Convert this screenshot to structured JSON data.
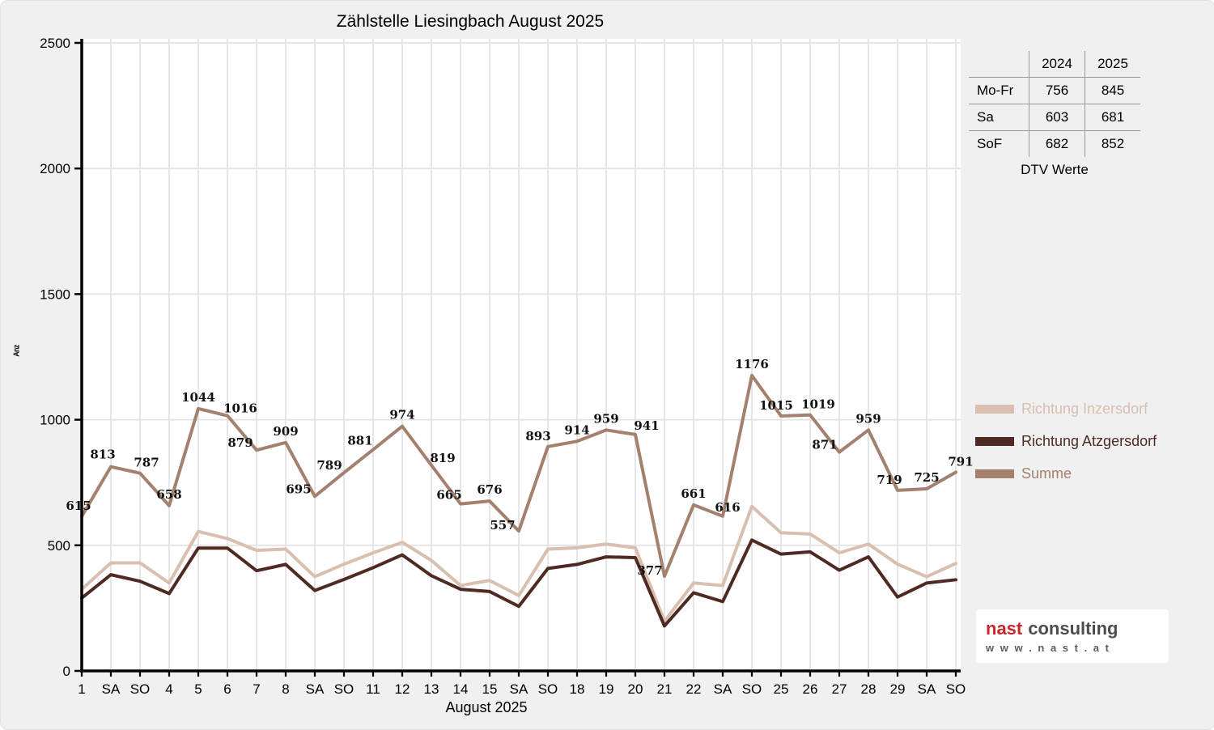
{
  "chart_data": {
    "type": "line",
    "title": "Zählstelle Liesingbach August 2025",
    "xlabel": "August 2025",
    "ylabel": "Anz",
    "ylim": [
      0,
      2500
    ],
    "yticks": [
      0,
      500,
      1000,
      1500,
      2000,
      2500
    ],
    "grid": true,
    "legend_position": "right",
    "days": [
      "1",
      "SA",
      "SO",
      "4",
      "5",
      "6",
      "7",
      "8",
      "SA",
      "SO",
      "11",
      "12",
      "13",
      "14",
      "15",
      "SA",
      "SO",
      "18",
      "19",
      "20",
      "21",
      "22",
      "SA",
      "SO",
      "25",
      "26",
      "27",
      "28",
      "29",
      "SA",
      "SO"
    ],
    "red_days": [
      3,
      10,
      15,
      17,
      24,
      31
    ],
    "series": [
      {
        "name": "Richtung Inzersdorf",
        "color": "#d8bfb0",
        "values": [
          325,
          430,
          430,
          350,
          555,
          527,
          480,
          485,
          375,
          425,
          470,
          512,
          440,
          340,
          360,
          300,
          485,
          490,
          505,
          490,
          198,
          350,
          340,
          655,
          550,
          545,
          470,
          505,
          425,
          375,
          428
        ]
      },
      {
        "name": "Richtung Atzgersdorf",
        "color": "#4e2a22",
        "values": [
          290,
          383,
          357,
          308,
          489,
          489,
          399,
          424,
          320,
          364,
          411,
          462,
          379,
          325,
          316,
          257,
          408,
          424,
          454,
          451,
          179,
          311,
          276,
          521,
          465,
          474,
          401,
          454,
          294,
          350,
          363
        ]
      },
      {
        "name": "Summe",
        "color": "#a3816e",
        "data_labels": true,
        "values": [
          615,
          813,
          787,
          658,
          1044,
          1016,
          879,
          909,
          695,
          789,
          881,
          974,
          819,
          665,
          676,
          557,
          893,
          914,
          959,
          941,
          377,
          661,
          616,
          1176,
          1015,
          1019,
          871,
          959,
          719,
          725,
          791
        ]
      }
    ]
  },
  "dtv_table": {
    "caption": "DTV Werte",
    "columns": [
      "",
      "2024",
      "2025"
    ],
    "rows": [
      {
        "label": "Mo-Fr",
        "y2024": "756",
        "y2025": "845"
      },
      {
        "label": "Sa",
        "y2024": "603",
        "y2025": "681"
      },
      {
        "label": "SoF",
        "y2024": "682",
        "y2025": "852"
      }
    ]
  },
  "logo": {
    "brand": "nast",
    "suffix": "consulting",
    "url": "w w w . n a s t . a t"
  },
  "colors": {
    "background": "#f0f0f0",
    "plot_bg": "#ffffff",
    "grid": "#e3e3e3",
    "axis": "#000000",
    "red_label": "#e60000"
  }
}
